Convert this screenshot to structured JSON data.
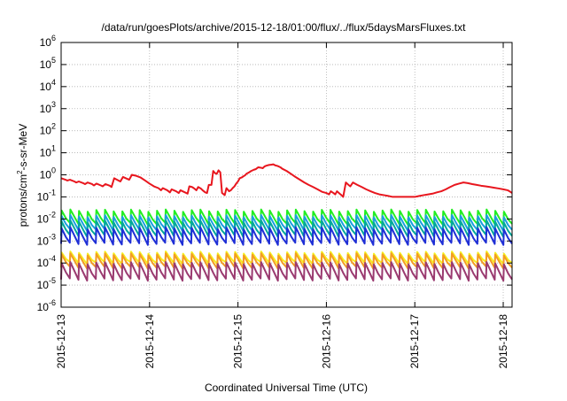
{
  "chart_data": {
    "type": "line",
    "title": "/data/run/goesPlots/archive/2015-12-18/01:00/flux/../flux/5daysMarsFluxes.txt",
    "xlabel": "Coordinated Universal Time (UTC)",
    "ylabel": {
      "base": "protons/cm",
      "sup": "2",
      "rest": "-s-sr-MeV"
    },
    "x_domain": [
      0,
      5.1
    ],
    "x_ticks": [
      {
        "value": 0,
        "label": "2015-12-13"
      },
      {
        "value": 1,
        "label": "2015-12-14"
      },
      {
        "value": 2,
        "label": "2015-12-15"
      },
      {
        "value": 3,
        "label": "2015-12-16"
      },
      {
        "value": 4,
        "label": "2015-12-17"
      },
      {
        "value": 5,
        "label": "2015-12-18"
      }
    ],
    "ylim": [
      1e-06,
      1000000.0
    ],
    "y_scale": "log",
    "y_ticks": [
      {
        "value": -6,
        "label": "10",
        "exp": "-6"
      },
      {
        "value": -5,
        "label": "10",
        "exp": "-5"
      },
      {
        "value": -4,
        "label": "10",
        "exp": "-4"
      },
      {
        "value": -3,
        "label": "10",
        "exp": "-3"
      },
      {
        "value": -2,
        "label": "10",
        "exp": "-2"
      },
      {
        "value": -1,
        "label": "10",
        "exp": "-1"
      },
      {
        "value": 0,
        "label": "10",
        "exp": "0"
      },
      {
        "value": 1,
        "label": "10",
        "exp": "1"
      },
      {
        "value": 2,
        "label": "10",
        "exp": "2"
      },
      {
        "value": 3,
        "label": "10",
        "exp": "3"
      },
      {
        "value": 4,
        "label": "10",
        "exp": "4"
      },
      {
        "value": 5,
        "label": "10",
        "exp": "5"
      },
      {
        "value": 6,
        "label": "10",
        "exp": "6"
      }
    ],
    "grid": true,
    "series": [
      {
        "color": "#e8161e",
        "points": [
          [
            0,
            0.7
          ],
          [
            0.05,
            0.6
          ],
          [
            0.07,
            0.55
          ],
          [
            0.1,
            0.6
          ],
          [
            0.15,
            0.5
          ],
          [
            0.17,
            0.45
          ],
          [
            0.2,
            0.5
          ],
          [
            0.25,
            0.42
          ],
          [
            0.27,
            0.38
          ],
          [
            0.3,
            0.45
          ],
          [
            0.35,
            0.38
          ],
          [
            0.37,
            0.33
          ],
          [
            0.4,
            0.4
          ],
          [
            0.45,
            0.33
          ],
          [
            0.47,
            0.3
          ],
          [
            0.5,
            0.38
          ],
          [
            0.55,
            0.32
          ],
          [
            0.57,
            0.28
          ],
          [
            0.6,
            0.7
          ],
          [
            0.65,
            0.55
          ],
          [
            0.67,
            0.5
          ],
          [
            0.7,
            0.8
          ],
          [
            0.75,
            0.65
          ],
          [
            0.77,
            0.6
          ],
          [
            0.8,
            1.0
          ],
          [
            0.85,
            0.9
          ],
          [
            0.9,
            0.75
          ],
          [
            0.95,
            0.55
          ],
          [
            1.0,
            0.4
          ],
          [
            1.05,
            0.3
          ],
          [
            1.1,
            0.25
          ],
          [
            1.13,
            0.2
          ],
          [
            1.15,
            0.25
          ],
          [
            1.2,
            0.2
          ],
          [
            1.23,
            0.16
          ],
          [
            1.25,
            0.22
          ],
          [
            1.3,
            0.18
          ],
          [
            1.33,
            0.15
          ],
          [
            1.35,
            0.2
          ],
          [
            1.4,
            0.16
          ],
          [
            1.43,
            0.14
          ],
          [
            1.45,
            0.3
          ],
          [
            1.48,
            0.28
          ],
          [
            1.5,
            0.25
          ],
          [
            1.53,
            0.2
          ],
          [
            1.55,
            0.28
          ],
          [
            1.58,
            0.24
          ],
          [
            1.6,
            0.2
          ],
          [
            1.63,
            0.16
          ],
          [
            1.65,
            0.15
          ],
          [
            1.67,
            0.35
          ],
          [
            1.7,
            0.35
          ],
          [
            1.72,
            1.5
          ],
          [
            1.74,
            1.2
          ],
          [
            1.76,
            1.1
          ],
          [
            1.78,
            1.6
          ],
          [
            1.8,
            1.3
          ],
          [
            1.82,
            0.15
          ],
          [
            1.85,
            0.12
          ],
          [
            1.87,
            0.25
          ],
          [
            1.9,
            0.18
          ],
          [
            1.92,
            0.2
          ],
          [
            1.94,
            0.25
          ],
          [
            1.96,
            0.3
          ],
          [
            1.98,
            0.4
          ],
          [
            2.0,
            0.5
          ],
          [
            2.02,
            0.7
          ],
          [
            2.04,
            0.75
          ],
          [
            2.06,
            0.85
          ],
          [
            2.08,
            0.95
          ],
          [
            2.1,
            1.15
          ],
          [
            2.12,
            1.25
          ],
          [
            2.15,
            1.5
          ],
          [
            2.18,
            1.7
          ],
          [
            2.2,
            1.8
          ],
          [
            2.23,
            2.2
          ],
          [
            2.26,
            2.1
          ],
          [
            2.28,
            2.0
          ],
          [
            2.3,
            2.4
          ],
          [
            2.32,
            2.6
          ],
          [
            2.35,
            2.8
          ],
          [
            2.38,
            2.9
          ],
          [
            2.4,
            3.0
          ],
          [
            2.42,
            2.7
          ],
          [
            2.45,
            2.5
          ],
          [
            2.48,
            2.2
          ],
          [
            2.5,
            1.9
          ],
          [
            2.55,
            1.5
          ],
          [
            2.6,
            1.1
          ],
          [
            2.65,
            0.8
          ],
          [
            2.7,
            0.6
          ],
          [
            2.75,
            0.45
          ],
          [
            2.8,
            0.35
          ],
          [
            2.85,
            0.28
          ],
          [
            2.9,
            0.22
          ],
          [
            2.95,
            0.17
          ],
          [
            3.0,
            0.15
          ],
          [
            3.03,
            0.13
          ],
          [
            3.05,
            0.18
          ],
          [
            3.08,
            0.15
          ],
          [
            3.1,
            0.13
          ],
          [
            3.12,
            0.18
          ],
          [
            3.15,
            0.14
          ],
          [
            3.17,
            0.12
          ],
          [
            3.19,
            0.1
          ],
          [
            3.22,
            0.45
          ],
          [
            3.25,
            0.35
          ],
          [
            3.27,
            0.3
          ],
          [
            3.3,
            0.45
          ],
          [
            3.35,
            0.35
          ],
          [
            3.4,
            0.28
          ],
          [
            3.45,
            0.22
          ],
          [
            3.5,
            0.18
          ],
          [
            3.55,
            0.15
          ],
          [
            3.6,
            0.13
          ],
          [
            3.65,
            0.12
          ],
          [
            3.7,
            0.11
          ],
          [
            3.75,
            0.1
          ],
          [
            3.8,
            0.1
          ],
          [
            3.85,
            0.1
          ],
          [
            3.9,
            0.1
          ],
          [
            3.95,
            0.1
          ],
          [
            4.0,
            0.1
          ],
          [
            4.05,
            0.11
          ],
          [
            4.1,
            0.12
          ],
          [
            4.15,
            0.13
          ],
          [
            4.2,
            0.14
          ],
          [
            4.25,
            0.16
          ],
          [
            4.3,
            0.18
          ],
          [
            4.35,
            0.22
          ],
          [
            4.4,
            0.28
          ],
          [
            4.45,
            0.35
          ],
          [
            4.5,
            0.4
          ],
          [
            4.55,
            0.45
          ],
          [
            4.6,
            0.42
          ],
          [
            4.65,
            0.38
          ],
          [
            4.7,
            0.35
          ],
          [
            4.75,
            0.32
          ],
          [
            4.8,
            0.3
          ],
          [
            4.85,
            0.28
          ],
          [
            4.9,
            0.26
          ],
          [
            4.95,
            0.24
          ],
          [
            5.0,
            0.22
          ],
          [
            5.05,
            0.2
          ],
          [
            5.08,
            0.17
          ],
          [
            5.1,
            0.15
          ]
        ]
      },
      {
        "color": "#22ee22",
        "base": 0.006,
        "amp": 4.0
      },
      {
        "color": "#1a9ee0",
        "base": 0.0032,
        "amp": 4.2
      },
      {
        "color": "#00a89a",
        "base": 0.0017,
        "amp": 4.5
      },
      {
        "color": "#1f2fd6",
        "base": 0.00075,
        "amp": 5.0
      },
      {
        "color": "#f6ef1e",
        "base": 0.0001,
        "amp": 3.0
      },
      {
        "color": "#f39c24",
        "base": 6.2e-05,
        "amp": 4.0
      },
      {
        "color": "#9a3a70",
        "base": 1.8e-05,
        "amp": 5.5
      }
    ]
  }
}
